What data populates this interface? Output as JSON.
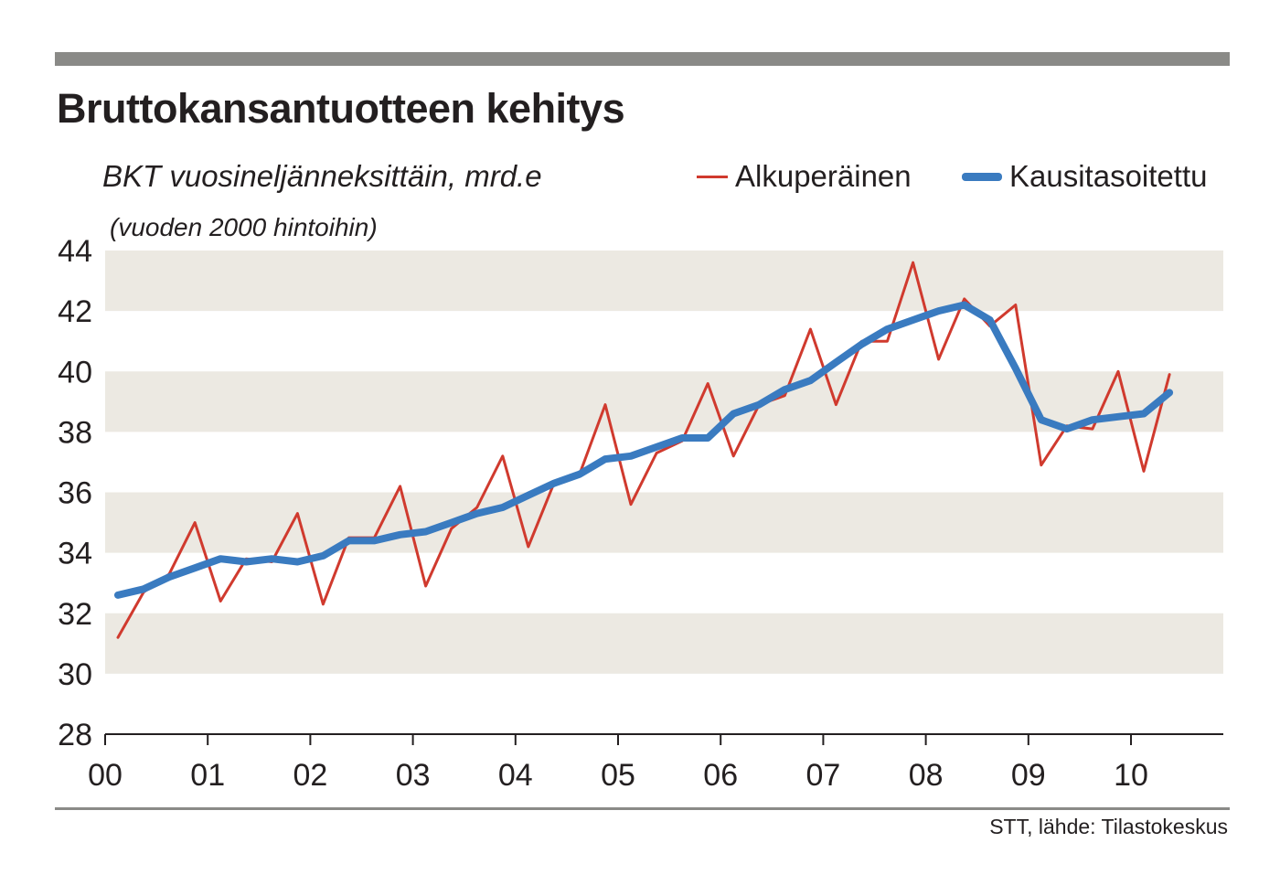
{
  "chart_data": {
    "type": "line",
    "title": "Bruttokansantuotteen kehitys",
    "subtitle": "BKT vuosineljänneksittäin, mrd.e",
    "note": "(vuoden 2000 hintoihin)",
    "source": "STT, lähde: Tilastokeskus",
    "ylim": [
      28,
      44
    ],
    "xlim": [
      2000,
      2010.9
    ],
    "yticks": [
      28,
      30,
      32,
      34,
      36,
      38,
      40,
      42,
      44
    ],
    "xticks": [
      {
        "value": 2000,
        "label": "00"
      },
      {
        "value": 2001,
        "label": "01"
      },
      {
        "value": 2002,
        "label": "02"
      },
      {
        "value": 2003,
        "label": "03"
      },
      {
        "value": 2004,
        "label": "04"
      },
      {
        "value": 2005,
        "label": "05"
      },
      {
        "value": 2006,
        "label": "06"
      },
      {
        "value": 2007,
        "label": "07"
      },
      {
        "value": 2008,
        "label": "08"
      },
      {
        "value": 2009,
        "label": "09"
      },
      {
        "value": 2010,
        "label": "10"
      }
    ],
    "bands": [
      [
        30,
        32
      ],
      [
        34,
        36
      ],
      [
        38,
        40
      ],
      [
        42,
        44
      ]
    ],
    "grid": false,
    "legend": "top-right",
    "x": [
      2000.125,
      2000.375,
      2000.625,
      2000.875,
      2001.125,
      2001.375,
      2001.625,
      2001.875,
      2002.125,
      2002.375,
      2002.625,
      2002.875,
      2003.125,
      2003.375,
      2003.625,
      2003.875,
      2004.125,
      2004.375,
      2004.625,
      2004.875,
      2005.125,
      2005.375,
      2005.625,
      2005.875,
      2006.125,
      2006.375,
      2006.625,
      2006.875,
      2007.125,
      2007.375,
      2007.625,
      2007.875,
      2008.125,
      2008.375,
      2008.625,
      2008.875,
      2009.125,
      2009.375,
      2009.625,
      2009.875,
      2010.125,
      2010.375
    ],
    "series": [
      {
        "name": "Alkuperäinen",
        "color": "#d03a2e",
        "values": [
          31.2,
          32.7,
          33.3,
          35.0,
          32.4,
          33.8,
          33.7,
          35.3,
          32.3,
          34.5,
          34.5,
          36.2,
          32.9,
          34.8,
          35.5,
          37.2,
          34.2,
          36.3,
          36.6,
          38.9,
          35.6,
          37.3,
          37.7,
          39.6,
          37.2,
          38.9,
          39.2,
          41.4,
          38.9,
          41.0,
          41.0,
          43.6,
          40.4,
          42.4,
          41.5,
          42.2,
          36.9,
          38.2,
          38.1,
          40.0,
          36.7,
          39.9
        ]
      },
      {
        "name": "Kausitasoitettu",
        "color": "#3a7bc0",
        "values": [
          32.6,
          32.8,
          33.2,
          33.5,
          33.8,
          33.7,
          33.8,
          33.7,
          33.9,
          34.4,
          34.4,
          34.6,
          34.7,
          35.0,
          35.3,
          35.5,
          35.9,
          36.3,
          36.6,
          37.1,
          37.2,
          37.5,
          37.8,
          37.8,
          38.6,
          38.9,
          39.4,
          39.7,
          40.3,
          40.9,
          41.4,
          41.7,
          42.0,
          42.2,
          41.7,
          40.1,
          38.4,
          38.1,
          38.4,
          38.5,
          38.6,
          39.3
        ]
      }
    ]
  }
}
